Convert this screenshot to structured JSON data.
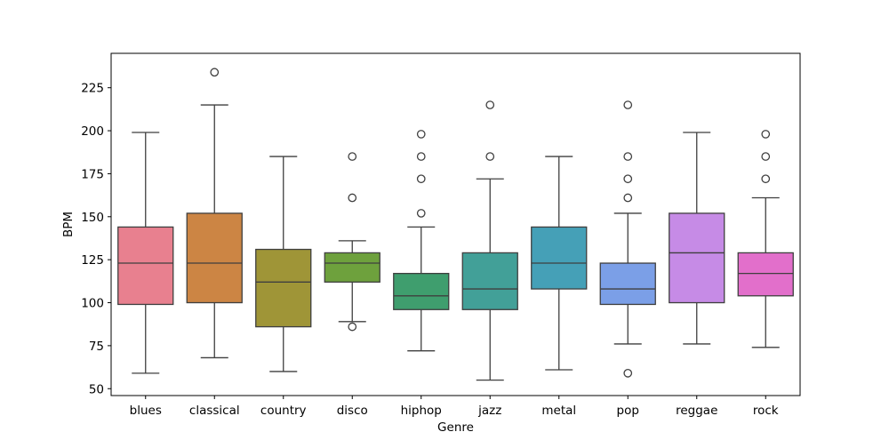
{
  "chart_data": {
    "type": "boxplot",
    "title": "",
    "xlabel": "Genre",
    "ylabel": "BPM",
    "ylim": [
      46,
      245
    ],
    "yticks": [
      50,
      75,
      100,
      125,
      150,
      175,
      200,
      225
    ],
    "grid": false,
    "legend": "none",
    "categories": [
      "blues",
      "classical",
      "country",
      "disco",
      "hiphop",
      "jazz",
      "metal",
      "pop",
      "reggae",
      "rock"
    ],
    "colors": [
      "#e8808f",
      "#cc8544",
      "#9f9537",
      "#6ea13d",
      "#3f9e6e",
      "#42a098",
      "#45a0b7",
      "#7b9fe7",
      "#c68be6",
      "#e26fcb"
    ],
    "boxes": [
      {
        "category": "blues",
        "whisker_low": 59,
        "q1": 99,
        "median": 123,
        "q3": 144,
        "whisker_high": 199,
        "outliers": []
      },
      {
        "category": "classical",
        "whisker_low": 68,
        "q1": 100,
        "median": 123,
        "q3": 152,
        "whisker_high": 215,
        "outliers": [
          234
        ]
      },
      {
        "category": "country",
        "whisker_low": 60,
        "q1": 86,
        "median": 112,
        "q3": 131,
        "whisker_high": 185,
        "outliers": []
      },
      {
        "category": "disco",
        "whisker_low": 89,
        "q1": 112,
        "median": 123,
        "q3": 129,
        "whisker_high": 136,
        "outliers": [
          86,
          161,
          185
        ]
      },
      {
        "category": "hiphop",
        "whisker_low": 72,
        "q1": 96,
        "median": 104,
        "q3": 117,
        "whisker_high": 144,
        "outliers": [
          152,
          172,
          185,
          198
        ]
      },
      {
        "category": "jazz",
        "whisker_low": 55,
        "q1": 96,
        "median": 108,
        "q3": 129,
        "whisker_high": 172,
        "outliers": [
          185,
          215
        ]
      },
      {
        "category": "metal",
        "whisker_low": 61,
        "q1": 108,
        "median": 123,
        "q3": 144,
        "whisker_high": 185,
        "outliers": []
      },
      {
        "category": "pop",
        "whisker_low": 76,
        "q1": 99,
        "median": 108,
        "q3": 123,
        "whisker_high": 152,
        "outliers": [
          59,
          161,
          172,
          185,
          215
        ]
      },
      {
        "category": "reggae",
        "whisker_low": 76,
        "q1": 100,
        "median": 129,
        "q3": 152,
        "whisker_high": 199,
        "outliers": []
      },
      {
        "category": "rock",
        "whisker_low": 74,
        "q1": 104,
        "median": 117,
        "q3": 129,
        "whisker_high": 161,
        "outliers": [
          172,
          185,
          198
        ]
      }
    ]
  }
}
